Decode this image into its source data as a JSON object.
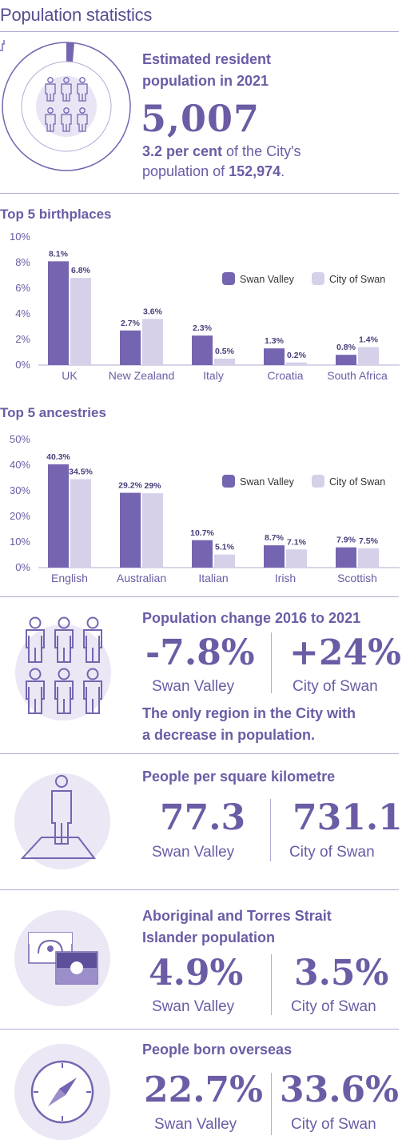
{
  "page": {
    "title": "Population statistics"
  },
  "colors": {
    "primary": "#7565b0",
    "secondary": "#d6d0e9",
    "text": "#6b5ca5"
  },
  "erp": {
    "icon": "people-grid-icon",
    "heading_line1": "Estimated resident",
    "heading_line2": "population in 2021",
    "value": "5,007",
    "percent": "3.2 per cent",
    "text_mid": " of the City's",
    "text_line2": "population of ",
    "city_total": "152,974",
    "text_end": "."
  },
  "birthplaces": {
    "heading": "Top 5 birthplaces",
    "chart_data": {
      "type": "bar",
      "categories": [
        "UK",
        "New Zealand",
        "Italy",
        "Croatia",
        "South Africa"
      ],
      "series": [
        {
          "name": "Swan Valley",
          "values": [
            8.1,
            2.7,
            2.3,
            1.3,
            0.8
          ]
        },
        {
          "name": "City of Swan",
          "values": [
            6.8,
            3.6,
            0.5,
            0.2,
            1.4
          ]
        }
      ],
      "labels": [
        [
          "8.1%",
          "6.8%"
        ],
        [
          "2.7%",
          "3.6%"
        ],
        [
          "2.3%",
          "0.5%"
        ],
        [
          "1.3%",
          "0.2%"
        ],
        [
          "0.8%",
          "1.4%"
        ]
      ],
      "yticks": [
        "0%",
        "2%",
        "4%",
        "6%",
        "8%",
        "10%"
      ],
      "ylim": [
        0,
        10
      ],
      "legend": "top-right",
      "grid": false
    }
  },
  "ancestries": {
    "heading": "Top 5 ancestries",
    "chart_data": {
      "type": "bar",
      "categories": [
        "English",
        "Australian",
        "Italian",
        "Irish",
        "Scottish"
      ],
      "series": [
        {
          "name": "Swan Valley",
          "values": [
            40.3,
            29.2,
            10.7,
            8.7,
            7.9
          ]
        },
        {
          "name": "City of Swan",
          "values": [
            34.5,
            29,
            5.1,
            7.1,
            7.5
          ]
        }
      ],
      "labels": [
        [
          "40.3%",
          "34.5%"
        ],
        [
          "29.2%",
          "29%"
        ],
        [
          "10.7%",
          "5.1%"
        ],
        [
          "8.7%",
          "7.1%"
        ],
        [
          "7.9%",
          "7.5%"
        ]
      ],
      "yticks": [
        "0%",
        "10%",
        "20%",
        "30%",
        "40%",
        "50%"
      ],
      "ylim": [
        0,
        50
      ],
      "legend": "top-right",
      "grid": false
    }
  },
  "change": {
    "icon": "people-group-icon",
    "heading": "Population change 2016 to 2021",
    "left_value": "-7.8%",
    "left_label": "Swan Valley",
    "right_value": "+24%",
    "right_label": "City of Swan",
    "note_line1": "The only region in the City with",
    "note_line2": "a decrease in population."
  },
  "density": {
    "icon": "person-on-map-icon",
    "heading": "People per square kilometre",
    "left_value": "77.3",
    "left_label": "Swan Valley",
    "right_value": "731.1",
    "right_label": "City of Swan"
  },
  "aboriginal": {
    "icon": "flags-icon",
    "heading_line1": "Aboriginal and Torres Strait",
    "heading_line2": "Islander population",
    "left_value": "4.9%",
    "left_label": "Swan Valley",
    "right_value": "3.5%",
    "right_label": "City of Swan"
  },
  "overseas": {
    "icon": "compass-icon",
    "heading": "People born overseas",
    "left_value": "22.7%",
    "left_label": "Swan Valley",
    "right_value": "33.6%",
    "right_label": "City of Swan"
  }
}
